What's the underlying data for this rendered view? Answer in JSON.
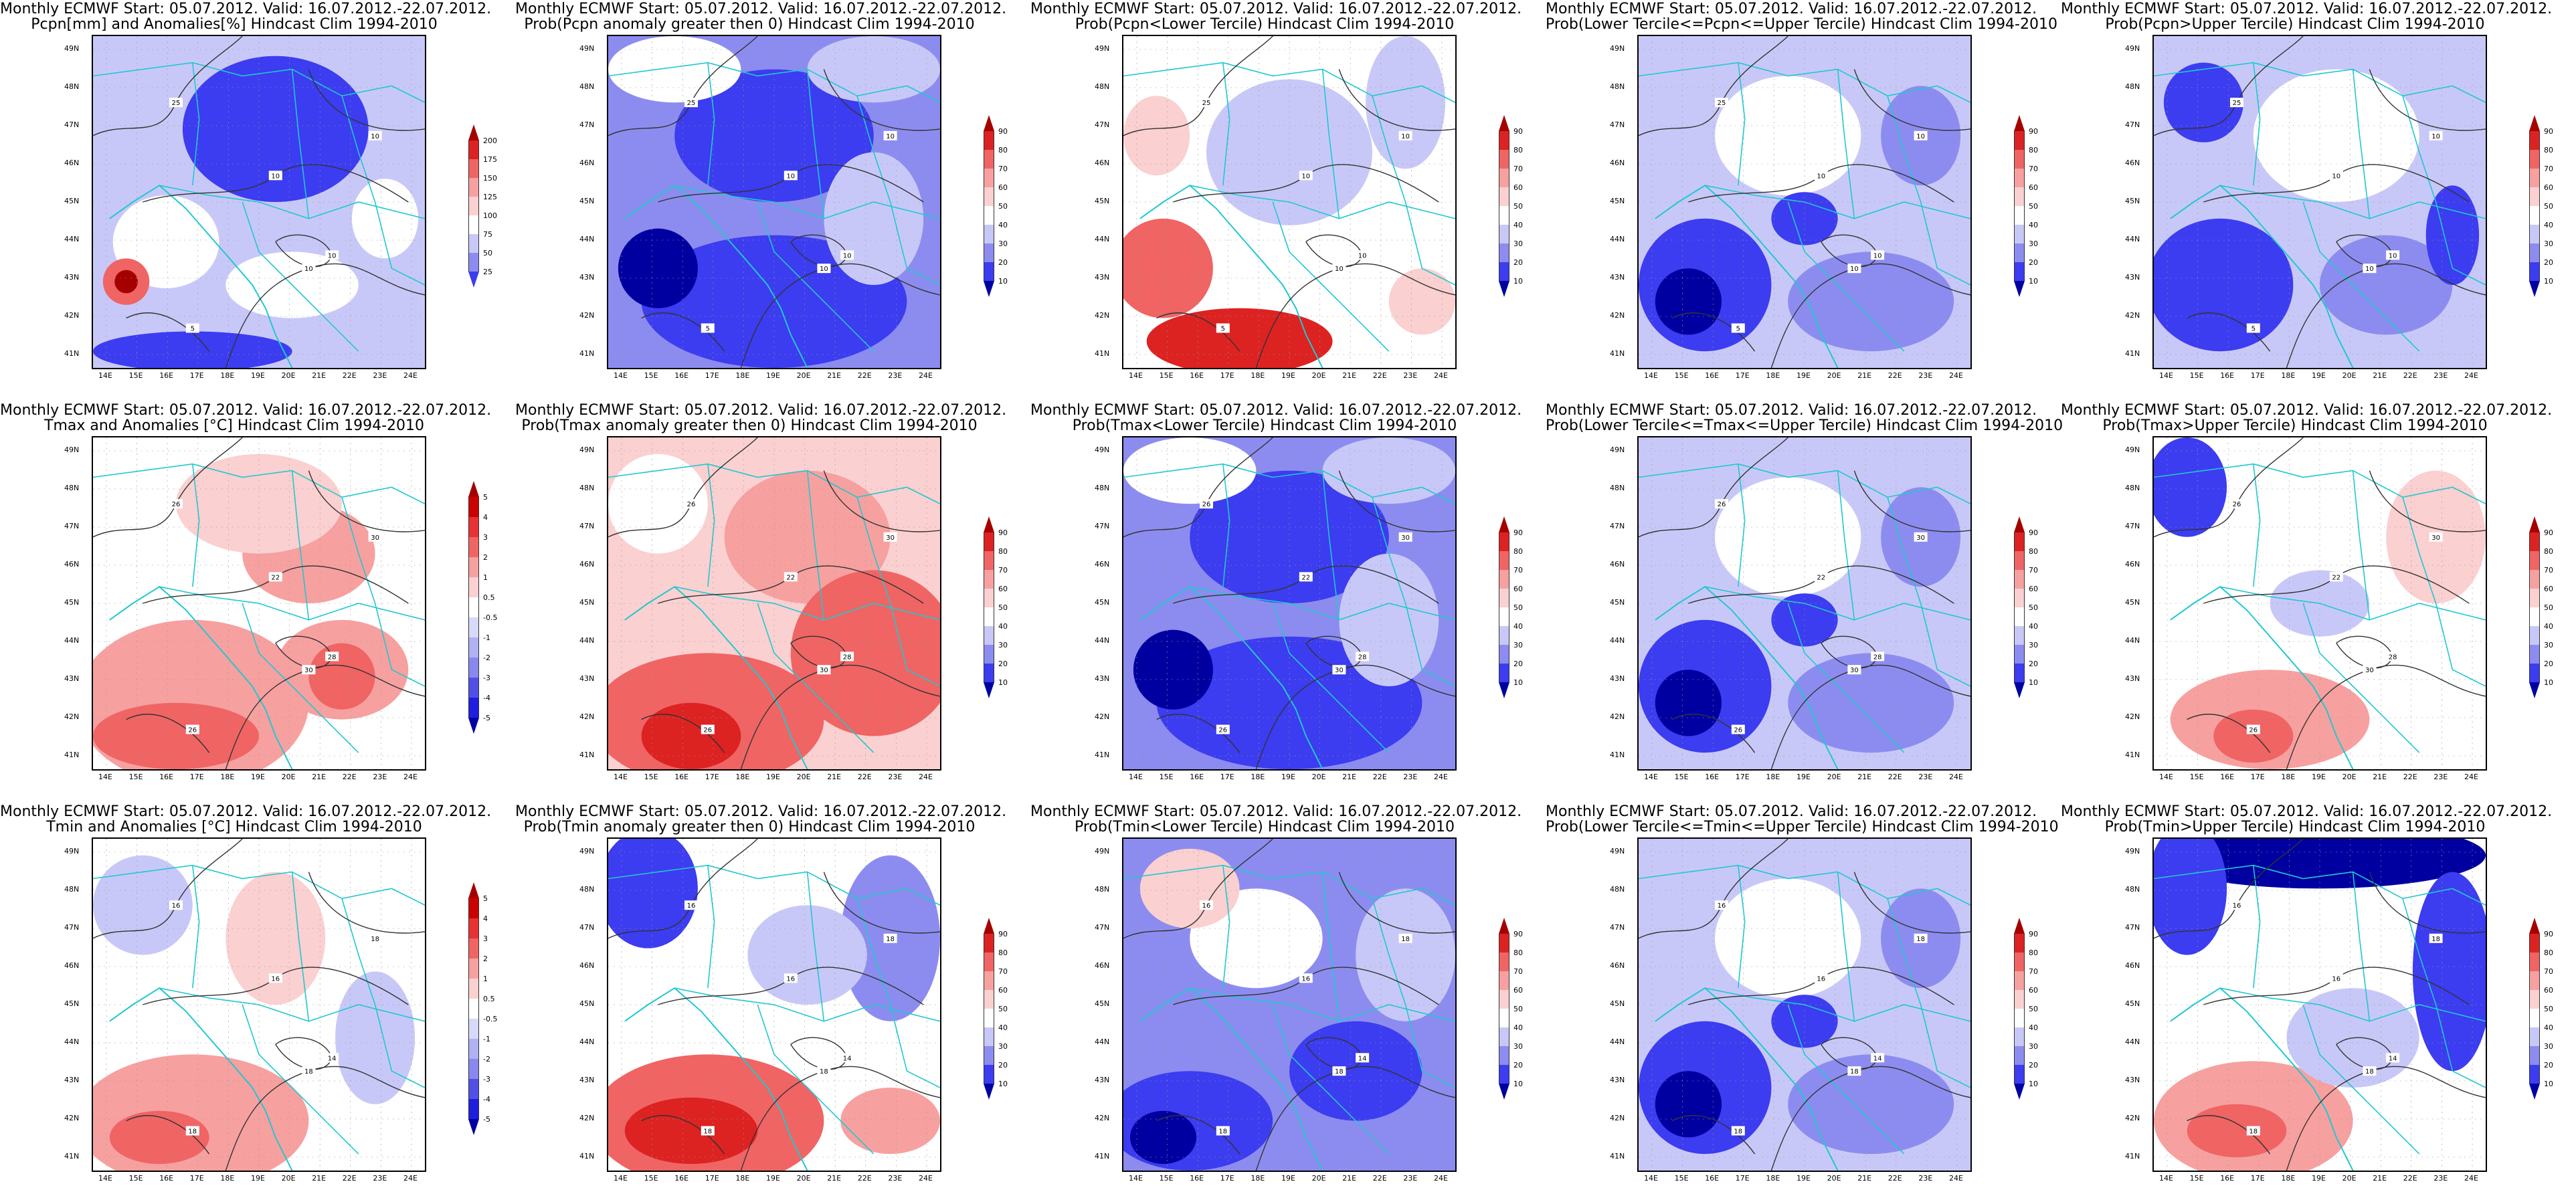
{
  "title_line1": "Monthly ECMWF Start: 05.07.2012. Valid: 16.07.2012.-22.07.2012.",
  "lat_labels": [
    "49N",
    "48N",
    "47N",
    "46N",
    "45N",
    "44N",
    "43N",
    "42N",
    "41N"
  ],
  "lon_labels": [
    "14E",
    "15E",
    "16E",
    "17E",
    "18E",
    "19E",
    "20E",
    "21E",
    "22E",
    "23E",
    "24E"
  ],
  "colorbars": {
    "pcpn": {
      "ticks": [
        "200",
        "175",
        "150",
        "125",
        "100",
        "75",
        "50",
        "25"
      ],
      "colors": [
        "#a50000",
        "#dd2222",
        "#f06464",
        "#f7a0a0",
        "#fbd0d0",
        "#ffffff",
        "#c8c8f8",
        "#8c8cf0",
        "#3c3cf0"
      ]
    },
    "temp": {
      "ticks": [
        "5",
        "4",
        "3",
        "2",
        "1",
        "0.5",
        "-0.5",
        "-1",
        "-2",
        "-3",
        "-4",
        "-5"
      ],
      "colors": [
        "#a50000",
        "#cc0000",
        "#e63232",
        "#f06464",
        "#f7a0a0",
        "#fbd0d0",
        "#ffffff",
        "#d8d8fa",
        "#b0b0f4",
        "#8888f0",
        "#5050e8",
        "#1e1ee0",
        "#0000a0"
      ]
    },
    "prob": {
      "ticks": [
        "90",
        "80",
        "70",
        "60",
        "50",
        "40",
        "30",
        "20",
        "10"
      ],
      "colors": [
        "#a50000",
        "#dd2222",
        "#f06464",
        "#f7a0a0",
        "#fbd0d0",
        "#ffffff",
        "#c8c8f8",
        "#8c8cf0",
        "#3c3cf0",
        "#0000a0"
      ]
    }
  },
  "panels": [
    {
      "title2": "Pcpn[mm] and Anomalies[%] Hindcast Clim 1994-2010",
      "cbar": "pcpn",
      "scheme": "pcpn_anom",
      "contours": [
        "25",
        "10",
        "10",
        "10",
        "10",
        "5"
      ]
    },
    {
      "title2": "Prob(Pcpn anomaly greater then 0) Hindcast Clim 1994-2010",
      "cbar": "prob",
      "scheme": "blue_strong",
      "contours": [
        "25",
        "10",
        "10",
        "10",
        "10",
        "5"
      ]
    },
    {
      "title2": "Prob(Pcpn<Lower Tercile) Hindcast Clim 1994-2010",
      "cbar": "prob",
      "scheme": "pcpn_lower",
      "contours": [
        "25",
        "10",
        "10",
        "10",
        "10",
        "5"
      ]
    },
    {
      "title2": "Prob(Lower Tercile<=Pcpn<=Upper Tercile) Hindcast Clim 1994-2010",
      "cbar": "prob",
      "scheme": "blue_mid",
      "contours": [
        "25",
        "10",
        "10",
        "10",
        "10",
        "5"
      ]
    },
    {
      "title2": "Prob(Pcpn>Upper Tercile) Hindcast Clim 1994-2010",
      "cbar": "prob",
      "scheme": "blue_mid2",
      "contours": [
        "25",
        "10",
        "10",
        "10",
        "10",
        "5"
      ]
    },
    {
      "title2": "Tmax and Anomalies [°C] Hindcast Clim 1994-2010",
      "cbar": "temp",
      "scheme": "red_soft",
      "contours": [
        "26",
        "22",
        "30",
        "30",
        "28",
        "26"
      ]
    },
    {
      "title2": "Prob(Tmax anomaly greater then 0) Hindcast Clim 1994-2010",
      "cbar": "prob",
      "scheme": "red_strong",
      "contours": [
        "26",
        "22",
        "30",
        "30",
        "28",
        "26"
      ]
    },
    {
      "title2": "Prob(Tmax<Lower Tercile) Hindcast Clim 1994-2010",
      "cbar": "prob",
      "scheme": "blue_strong",
      "contours": [
        "26",
        "22",
        "30",
        "30",
        "28",
        "26"
      ]
    },
    {
      "title2": "Prob(Lower Tercile<=Tmax<=Upper Tercile) Hindcast Clim 1994-2010",
      "cbar": "prob",
      "scheme": "blue_mid",
      "contours": [
        "26",
        "22",
        "30",
        "30",
        "28",
        "26"
      ]
    },
    {
      "title2": "Prob(Tmax>Upper Tercile) Hindcast Clim 1994-2010",
      "cbar": "prob",
      "scheme": "mixed",
      "contours": [
        "26",
        "22",
        "30",
        "30",
        "28",
        "26"
      ]
    },
    {
      "title2": "Tmin and Anomalies [°C] Hindcast Clim 1994-2010",
      "cbar": "temp",
      "scheme": "red_soft2",
      "contours": [
        "16",
        "16",
        "18",
        "18",
        "14",
        "18"
      ]
    },
    {
      "title2": "Prob(Tmin anomaly greater then 0) Hindcast Clim 1994-2010",
      "cbar": "prob",
      "scheme": "red_strong2",
      "contours": [
        "16",
        "16",
        "18",
        "18",
        "14",
        "18"
      ]
    },
    {
      "title2": "Prob(Tmin<Lower Tercile) Hindcast Clim 1994-2010",
      "cbar": "prob",
      "scheme": "blue_strong2",
      "contours": [
        "16",
        "16",
        "18",
        "18",
        "14",
        "18"
      ]
    },
    {
      "title2": "Prob(Lower Tercile<=Tmin<=Upper Tercile) Hindcast Clim 1994-2010",
      "cbar": "prob",
      "scheme": "blue_mid",
      "contours": [
        "16",
        "16",
        "18",
        "18",
        "14",
        "18"
      ]
    },
    {
      "title2": "Prob(Tmin>Upper Tercile) Hindcast Clim 1994-2010",
      "cbar": "prob",
      "scheme": "mixed2",
      "contours": [
        "16",
        "16",
        "18",
        "18",
        "14",
        "18"
      ]
    }
  ]
}
